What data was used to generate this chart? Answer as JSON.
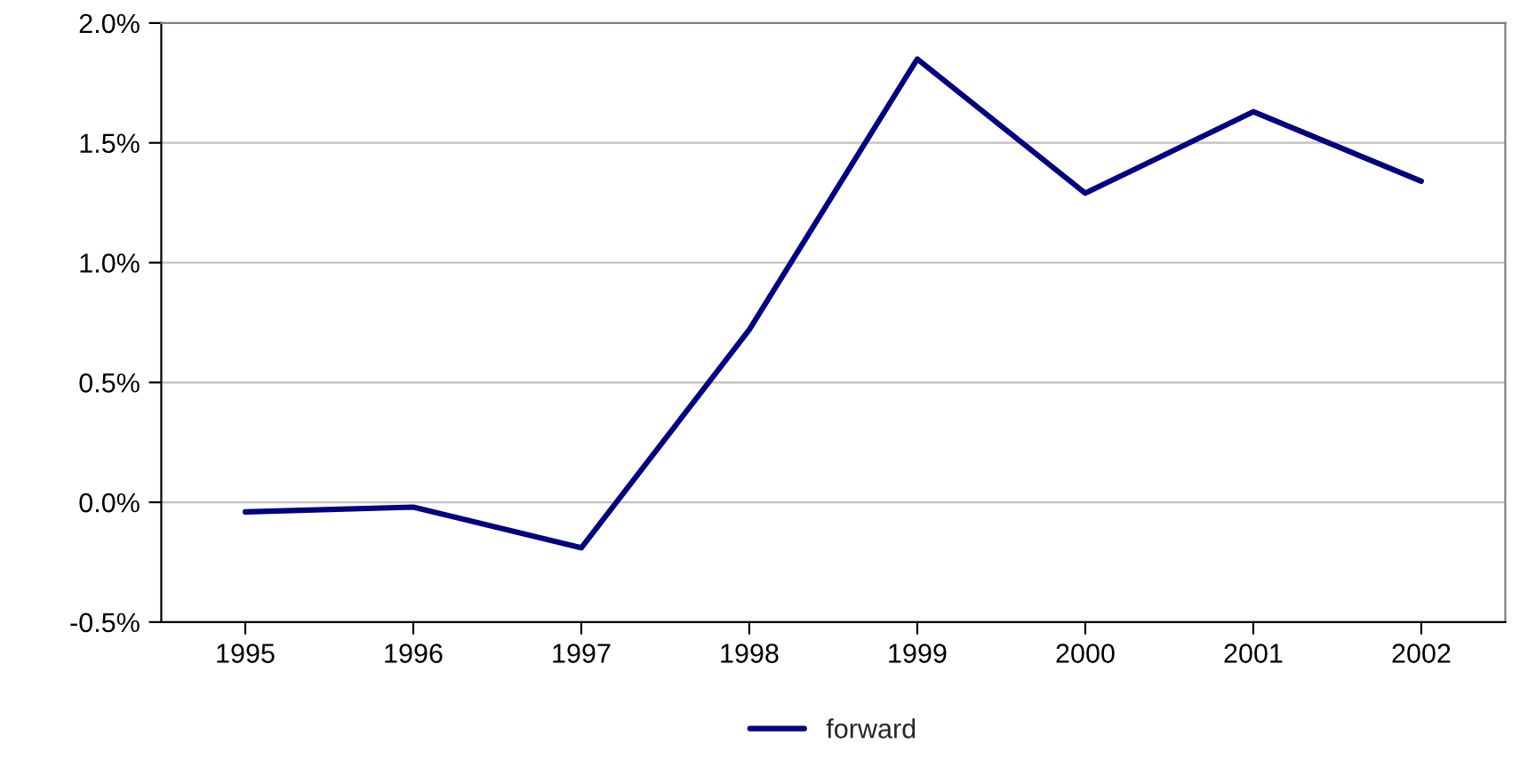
{
  "chart_data": {
    "type": "line",
    "categories": [
      "1995",
      "1996",
      "1997",
      "1998",
      "1999",
      "2000",
      "2001",
      "2002"
    ],
    "series": [
      {
        "name": "forward",
        "color": "#000080",
        "values": [
          -0.04,
          -0.02,
          -0.19,
          0.72,
          1.85,
          1.29,
          1.63,
          1.34
        ]
      }
    ],
    "ylim": [
      -0.5,
      2.0
    ],
    "yticks": [
      {
        "value": -0.5,
        "label": "-0.5%"
      },
      {
        "value": 0.0,
        "label": "0.0%"
      },
      {
        "value": 0.5,
        "label": "0.5%"
      },
      {
        "value": 1.0,
        "label": "1.0%"
      },
      {
        "value": 1.5,
        "label": "1.5%"
      },
      {
        "value": 2.0,
        "label": "2.0%"
      }
    ],
    "grid": "y",
    "legend": "bottom",
    "marker": "none",
    "line_style": "solid"
  }
}
